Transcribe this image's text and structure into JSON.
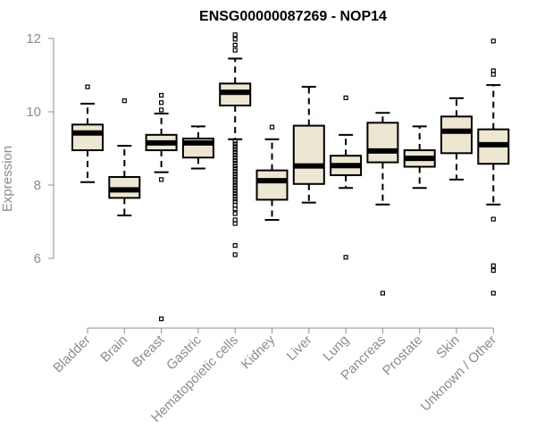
{
  "chart_data": {
    "type": "boxplot",
    "title": "ENSG00000087269 - NOP14",
    "ylabel": "Expression",
    "xlabel": "",
    "ylim": [
      4.0,
      12.3
    ],
    "yticks": [
      6,
      8,
      10,
      12
    ],
    "grid": false,
    "box_fill": "#ede7d1",
    "categories": [
      "Bladder",
      "Brain",
      "Breast",
      "Gastric",
      "Hematopoietic cells",
      "Kidney",
      "Liver",
      "Lung",
      "Pancreas",
      "Prostate",
      "Skin",
      "Unknown / Other"
    ],
    "boxes": [
      {
        "q1": 8.95,
        "median": 9.42,
        "q3": 9.65,
        "whisker_low": 8.08,
        "whisker_high": 10.22,
        "outliers": [
          10.68
        ]
      },
      {
        "q1": 7.65,
        "median": 7.87,
        "q3": 8.22,
        "whisker_low": 7.17,
        "whisker_high": 9.07,
        "outliers": [
          10.3
        ]
      },
      {
        "q1": 8.95,
        "median": 9.15,
        "q3": 9.37,
        "whisker_low": 8.35,
        "whisker_high": 9.95,
        "outliers": [
          10.45,
          10.25,
          10.05,
          8.15,
          4.35
        ]
      },
      {
        "q1": 8.75,
        "median": 9.15,
        "q3": 9.27,
        "whisker_low": 8.45,
        "whisker_high": 9.6,
        "outliers": []
      },
      {
        "q1": 10.17,
        "median": 10.53,
        "q3": 10.77,
        "whisker_low": 9.25,
        "whisker_high": 11.45,
        "outliers": [
          12.1,
          11.98,
          11.82,
          11.68,
          9.2,
          9.12,
          9.05,
          8.97,
          8.9,
          8.82,
          8.75,
          8.67,
          8.6,
          8.52,
          8.45,
          8.37,
          8.3,
          8.22,
          8.15,
          8.07,
          8.0,
          7.92,
          7.85,
          7.77,
          7.7,
          7.62,
          7.55,
          7.45,
          7.35,
          7.22,
          7.05,
          6.95,
          6.35,
          6.1
        ]
      },
      {
        "q1": 7.6,
        "median": 8.12,
        "q3": 8.4,
        "whisker_low": 7.05,
        "whisker_high": 9.25,
        "outliers": [
          9.58
        ]
      },
      {
        "q1": 8.03,
        "median": 8.52,
        "q3": 9.62,
        "whisker_low": 7.52,
        "whisker_high": 10.68,
        "outliers": []
      },
      {
        "q1": 8.27,
        "median": 8.53,
        "q3": 8.8,
        "whisker_low": 7.92,
        "whisker_high": 9.37,
        "outliers": [
          10.38,
          6.03
        ]
      },
      {
        "q1": 8.62,
        "median": 8.93,
        "q3": 9.7,
        "whisker_low": 7.47,
        "whisker_high": 9.97,
        "outliers": [
          5.05
        ]
      },
      {
        "q1": 8.5,
        "median": 8.73,
        "q3": 8.95,
        "whisker_low": 7.92,
        "whisker_high": 9.6,
        "outliers": []
      },
      {
        "q1": 8.87,
        "median": 9.47,
        "q3": 9.87,
        "whisker_low": 8.15,
        "whisker_high": 10.37,
        "outliers": []
      },
      {
        "q1": 8.58,
        "median": 9.1,
        "q3": 9.52,
        "whisker_low": 7.47,
        "whisker_high": 10.73,
        "outliers": [
          11.93,
          11.12,
          11.02,
          7.07,
          5.8,
          5.67,
          5.05
        ]
      }
    ]
  }
}
